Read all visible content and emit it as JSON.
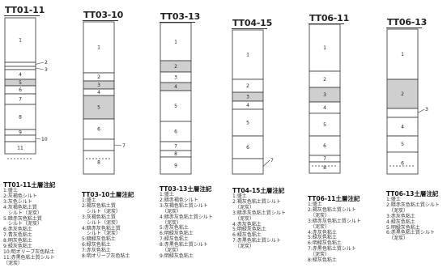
{
  "cores": [
    {
      "name": "TT01-11",
      "legend_title": "TT01-11土層注記",
      "layers": [
        {
          "id": "1",
          "shaded": false
        },
        {
          "id": "2",
          "shaded": false
        },
        {
          "id": "3",
          "shaded": false
        },
        {
          "id": "4",
          "shaded": false
        },
        {
          "id": "5",
          "shaded": true
        },
        {
          "id": "6",
          "shaded": false
        },
        {
          "id": "7",
          "shaded": false
        },
        {
          "id": "8",
          "shaded": false
        },
        {
          "id": "9",
          "shaded": false
        },
        {
          "id": "10",
          "shaded": false
        },
        {
          "id": "11",
          "shaded": false
        }
      ],
      "legend": [
        "1:盛土",
        "2:灰褐色シルト",
        "3:灰色シルト",
        "4:灰褐色粘土質",
        "　シルト（泥炭）",
        "5:暗赤灰色粘土質",
        "　シルト（泥炭）",
        "6:赤灰色粘土",
        "7:青灰色粘土",
        "8:明灰色粘土",
        "9:緑灰色粘土",
        "10:明オリーブ灰色粘土",
        "11:赤黒色粘土質シルト",
        "（泥炭）"
      ]
    },
    {
      "name": "TT03-10",
      "legend_title": "TT03-10土層注記",
      "layers": [
        {
          "id": "1",
          "shaded": false
        },
        {
          "id": "2",
          "shaded": false
        },
        {
          "id": "3",
          "shaded": true
        },
        {
          "id": "4",
          "shaded": false
        },
        {
          "id": "5",
          "shaded": true
        },
        {
          "id": "6",
          "shaded": false
        },
        {
          "id": "7",
          "shaded": false
        },
        {
          "id": "8",
          "shaded": false
        }
      ],
      "legend": [
        "1:盛土",
        "2:褐灰色粘土質",
        "　シルト（泥炭）",
        "3:灰褐色粘土質",
        "　シルト（泥炭）",
        "4:暗赤灰色粘土質",
        "　シルト（泥炭）",
        "5:暗緑灰色粘土",
        "6:緑灰色粘土",
        "7:赤灰色粘土",
        "8:明オリーブ灰色粘土"
      ]
    },
    {
      "name": "TT03-13",
      "legend_title": "TT03-13土層注記",
      "layers": [
        {
          "id": "1",
          "shaded": false
        },
        {
          "id": "2",
          "shaded": true
        },
        {
          "id": "3",
          "shaded": false
        },
        {
          "id": "4",
          "shaded": true
        },
        {
          "id": "5",
          "shaded": false
        },
        {
          "id": "6",
          "shaded": false
        },
        {
          "id": "7",
          "shaded": false
        },
        {
          "id": "8",
          "shaded": false
        },
        {
          "id": "9",
          "shaded": false
        }
      ],
      "legend": [
        "1:盛土",
        "2:暗赤褐色シルト",
        "3:灰褐色粘土質シルト",
        "　（泥炭）",
        "4:暗赤灰色粘土質シルト",
        "　（泥炭）",
        "5:赤灰色粘土",
        "6:明緑灰色粘土",
        "7:緑灰色粘土",
        "8:赤黒色粘土質シルト",
        "　（泥炭）",
        "9:明緑灰色粘土"
      ]
    },
    {
      "name": "TT04-15",
      "legend_title": "TT04-15土層注記",
      "layers": [
        {
          "id": "1",
          "shaded": false
        },
        {
          "id": "2",
          "shaded": false
        },
        {
          "id": "3",
          "shaded": true
        },
        {
          "id": "4",
          "shaded": false
        },
        {
          "id": "5",
          "shaded": false
        },
        {
          "id": "6",
          "shaded": false
        },
        {
          "id": "7",
          "shaded": false
        }
      ],
      "legend": [
        "1:盛土",
        "2:褐灰色粘土質シルト",
        "　（泥炭）",
        "3:暗赤灰色粘土質シルト",
        "　（泥炭）",
        "4:赤灰色粘土",
        "5:明緑灰色粘土",
        "6:緑灰色粘土",
        "7:赤黒色粘土質シルト",
        "　（泥炭）"
      ]
    },
    {
      "name": "TT06-11",
      "legend_title": "TT06-11土層注記",
      "layers": [
        {
          "id": "1",
          "shaded": false
        },
        {
          "id": "2",
          "shaded": false
        },
        {
          "id": "3",
          "shaded": true
        },
        {
          "id": "4",
          "shaded": false
        },
        {
          "id": "5",
          "shaded": false
        },
        {
          "id": "6",
          "shaded": false
        },
        {
          "id": "7",
          "shaded": false
        },
        {
          "id": "8",
          "shaded": false
        }
      ],
      "legend": [
        "1:盛土",
        "2:褐灰色粘土質シルト",
        "　（泥炭）",
        "3:暗赤灰色粘土質シルト",
        "　（泥炭）",
        "4:赤灰色粘土",
        "5:緑灰色粘土",
        "6:明緑灰色粘土",
        "7:赤黒色粘土質シルト",
        "　（泥炭）",
        "8:緑灰色粘土"
      ]
    },
    {
      "name": "TT06-13",
      "legend_title": "TT06-13土層注記",
      "layers": [
        {
          "id": "1",
          "shaded": false
        },
        {
          "id": "2",
          "shaded": true
        },
        {
          "id": "3",
          "shaded": false
        },
        {
          "id": "4",
          "shaded": false
        },
        {
          "id": "5",
          "shaded": false
        },
        {
          "id": "6",
          "shaded": false
        }
      ],
      "legend": [
        "1:盛土",
        "2:暗赤灰色粘土質シルト",
        "　（泥炭）",
        "3:赤灰色粘土",
        "4:緑灰色粘土",
        "5:明緑灰色粘土",
        "6:赤黒色粘土質シルト",
        "　（泥炭）"
      ]
    }
  ]
}
